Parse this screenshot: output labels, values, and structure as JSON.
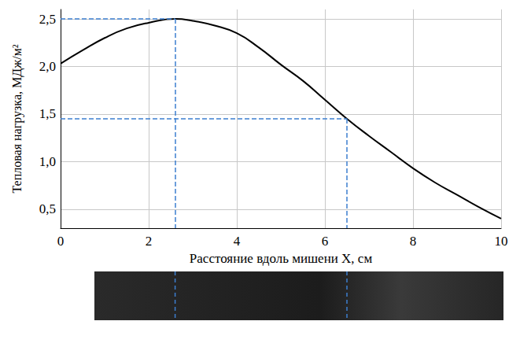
{
  "chart_data": {
    "type": "line",
    "x_label": "Расстояние вдоль мишени X, см",
    "y_label": "Тепловая нагрузка, МДж/м²",
    "x": [
      0,
      0.5,
      1,
      1.5,
      2,
      2.6,
      3,
      3.5,
      4,
      4.5,
      5,
      5.5,
      6,
      6.5,
      7,
      7.5,
      8,
      8.5,
      9,
      9.5,
      10
    ],
    "values": [
      2.03,
      2.17,
      2.3,
      2.4,
      2.46,
      2.5,
      2.48,
      2.43,
      2.35,
      2.2,
      2.02,
      1.85,
      1.65,
      1.45,
      1.27,
      1.1,
      0.93,
      0.78,
      0.65,
      0.52,
      0.4
    ],
    "color": "#000000",
    "xlim": [
      0,
      10
    ],
    "xticks": [
      0,
      2,
      4,
      6,
      8,
      10
    ],
    "ylim": [
      0.3,
      2.6
    ],
    "yticks": [
      {
        "value": 0.5,
        "label": "0,5"
      },
      {
        "value": 1.0,
        "label": "1,0"
      },
      {
        "value": 1.5,
        "label": "1,5"
      },
      {
        "value": 2.0,
        "label": "2,0"
      },
      {
        "value": 2.5,
        "label": "2,5"
      }
    ],
    "grid": true,
    "guides": {
      "color": "#3c7fd0",
      "line_style": "dashed",
      "points": [
        {
          "x": 2.6,
          "y": 2.5
        },
        {
          "x": 6.5,
          "y": 1.45
        }
      ]
    }
  }
}
